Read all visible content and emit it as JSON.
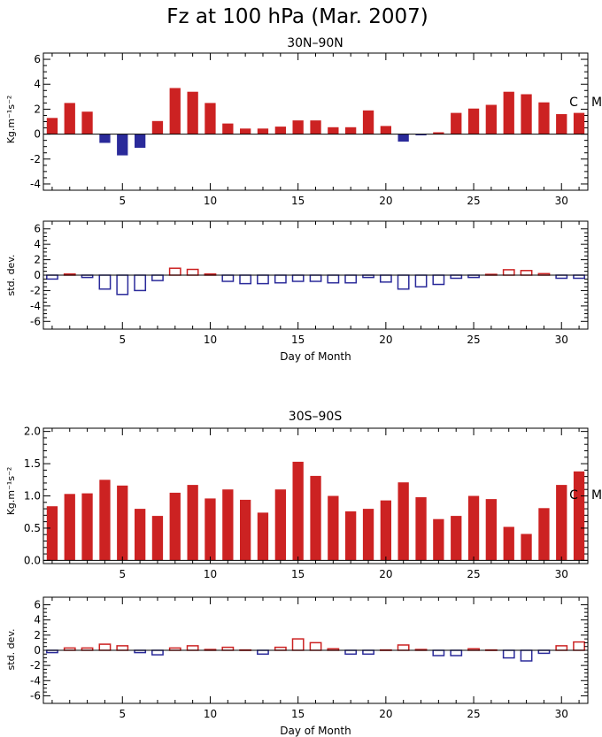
{
  "figure_title": "Fz at 100 hPa (Mar. 2007)",
  "panel_titles": {
    "north": "30N–90N",
    "south": "30S–90S"
  },
  "labels": {
    "flux_ylabel": "Kg.m⁻¹s⁻²",
    "std_ylabel": "std. dev.",
    "xlabel": "Day of Month",
    "marker_c": "C",
    "marker_m": "M"
  },
  "colors": {
    "positive": "#cc2222",
    "negative": "#2a2a9a",
    "axis": "#000000"
  },
  "chart_data": [
    {
      "type": "bar",
      "id": "north-flux",
      "style": "filled",
      "title": "30N–90N",
      "ylabel": "Kg.m⁻¹s⁻²",
      "x": [
        1,
        2,
        3,
        4,
        5,
        6,
        7,
        8,
        9,
        10,
        11,
        12,
        13,
        14,
        15,
        16,
        17,
        18,
        19,
        20,
        21,
        22,
        23,
        24,
        25,
        26,
        27,
        28,
        29,
        30,
        31
      ],
      "values": [
        1.3,
        2.5,
        1.8,
        -0.7,
        -1.7,
        -1.1,
        1.05,
        3.7,
        3.4,
        2.5,
        0.85,
        0.45,
        0.45,
        0.6,
        1.1,
        1.1,
        0.55,
        0.55,
        1.9,
        0.65,
        -0.6,
        -0.1,
        0.15,
        1.7,
        2.05,
        2.35,
        3.4,
        3.2,
        2.55,
        1.6,
        1.7
      ],
      "xlim": [
        0.5,
        31.5
      ],
      "ylim": [
        -4.5,
        6.5
      ],
      "yticks": [
        -4,
        -2,
        0,
        2,
        4,
        6
      ],
      "xticks": [
        5,
        10,
        15,
        20,
        25,
        30
      ],
      "annotations": [
        "C",
        "M"
      ]
    },
    {
      "type": "bar",
      "id": "north-std",
      "style": "outline",
      "ylabel": "std. dev.",
      "xlabel": "Day of Month",
      "x": [
        1,
        2,
        3,
        4,
        5,
        6,
        7,
        8,
        9,
        10,
        11,
        12,
        13,
        14,
        15,
        16,
        17,
        18,
        19,
        20,
        21,
        22,
        23,
        24,
        25,
        26,
        27,
        28,
        29,
        30,
        31
      ],
      "values": [
        -0.5,
        0.15,
        -0.3,
        -1.8,
        -2.5,
        -2.0,
        -0.7,
        0.9,
        0.75,
        0.15,
        -0.8,
        -1.1,
        -1.1,
        -1.0,
        -0.8,
        -0.8,
        -1.0,
        -1.0,
        -0.3,
        -0.9,
        -1.8,
        -1.5,
        -1.2,
        -0.4,
        -0.3,
        0.1,
        0.7,
        0.6,
        0.2,
        -0.4,
        -0.4
      ],
      "xlim": [
        0.5,
        31.5
      ],
      "ylim": [
        -7,
        7
      ],
      "yticks": [
        -6,
        -4,
        -2,
        0,
        2,
        4,
        6
      ],
      "xticks": [
        5,
        10,
        15,
        20,
        25,
        30
      ]
    },
    {
      "type": "bar",
      "id": "south-flux",
      "style": "filled",
      "title": "30S–90S",
      "ylabel": "Kg.m⁻¹s⁻²",
      "x": [
        1,
        2,
        3,
        4,
        5,
        6,
        7,
        8,
        9,
        10,
        11,
        12,
        13,
        14,
        15,
        16,
        17,
        18,
        19,
        20,
        21,
        22,
        23,
        24,
        25,
        26,
        27,
        28,
        29,
        30,
        31
      ],
      "values": [
        0.84,
        1.03,
        1.04,
        1.25,
        1.16,
        0.8,
        0.69,
        1.05,
        1.17,
        0.96,
        1.1,
        0.94,
        0.74,
        1.1,
        1.53,
        1.31,
        1.0,
        0.76,
        0.8,
        0.93,
        1.21,
        0.98,
        0.64,
        0.69,
        1.0,
        0.95,
        0.52,
        0.41,
        0.81,
        1.17,
        1.38
      ],
      "xlim": [
        0.5,
        31.5
      ],
      "ylim": [
        -0.05,
        2.05
      ],
      "yticks": [
        0.0,
        0.5,
        1.0,
        1.5,
        2.0
      ],
      "xticks": [
        5,
        10,
        15,
        20,
        25,
        30
      ],
      "annotations": [
        "C",
        "M"
      ]
    },
    {
      "type": "bar",
      "id": "south-std",
      "style": "outline",
      "ylabel": "std. dev.",
      "xlabel": "Day of Month",
      "x": [
        1,
        2,
        3,
        4,
        5,
        6,
        7,
        8,
        9,
        10,
        11,
        12,
        13,
        14,
        15,
        16,
        17,
        18,
        19,
        20,
        21,
        22,
        23,
        24,
        25,
        26,
        27,
        28,
        29,
        30,
        31
      ],
      "values": [
        -0.3,
        0.3,
        0.3,
        0.8,
        0.6,
        -0.3,
        -0.6,
        0.3,
        0.6,
        0.1,
        0.4,
        0.05,
        -0.5,
        0.4,
        1.5,
        1.0,
        0.2,
        -0.5,
        -0.5,
        0.05,
        0.7,
        0.1,
        -0.7,
        -0.7,
        0.2,
        0.05,
        -1.0,
        -1.4,
        -0.4,
        0.6,
        1.1
      ],
      "xlim": [
        0.5,
        31.5
      ],
      "ylim": [
        -7,
        7
      ],
      "yticks": [
        -6,
        -4,
        -2,
        0,
        2,
        4,
        6
      ],
      "xticks": [
        5,
        10,
        15,
        20,
        25,
        30
      ]
    }
  ]
}
